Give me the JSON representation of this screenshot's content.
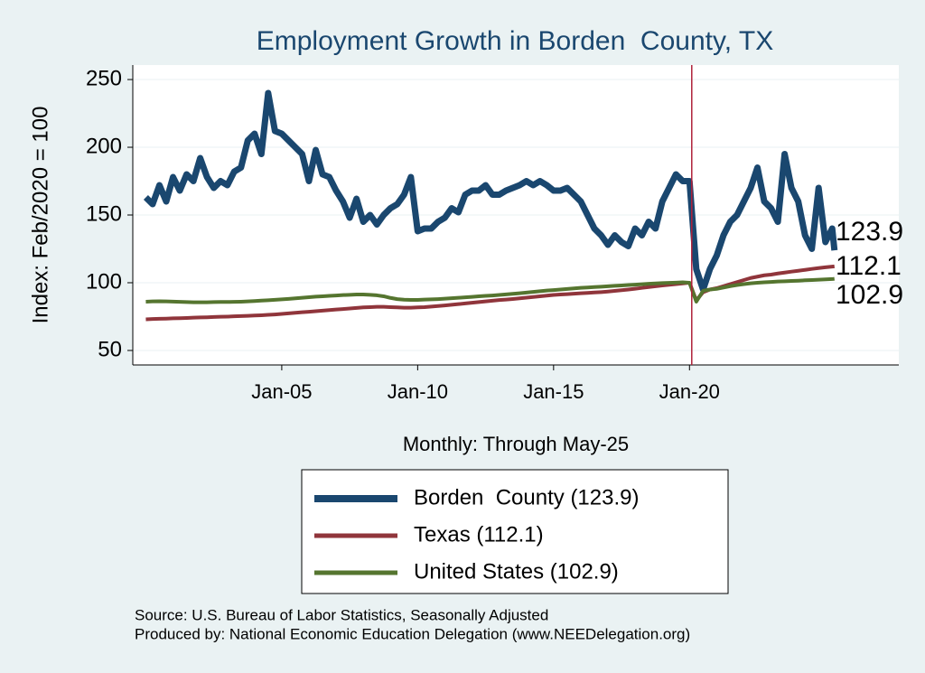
{
  "chart_data": {
    "type": "line",
    "title": "Employment Growth in Borden  County, TX",
    "xlabel": "Monthly: Through May-25",
    "ylabel": "Index: Feb/2020 = 100",
    "notes": [
      "Source: U.S. Bureau of Labor Statistics, Seasonally Adjusted",
      "Produced by: National Economic Education Delegation (www.NEEDelegation.org)"
    ],
    "xlim": [
      1999.52,
      2027.7
    ],
    "ylim": [
      39.3,
      260.7
    ],
    "xticks": [
      {
        "value": 2005,
        "label": "Jan-05"
      },
      {
        "value": 2010,
        "label": "Jan-10"
      },
      {
        "value": 2015,
        "label": "Jan-15"
      },
      {
        "value": 2020,
        "label": "Jan-20"
      }
    ],
    "yticks": [
      50,
      100,
      150,
      200,
      250
    ],
    "grid": true,
    "vline": 2020.083,
    "vline_color": "#b0213a",
    "x": [
      2000,
      2000.25,
      2000.5,
      2000.75,
      2001,
      2001.25,
      2001.5,
      2001.75,
      2002,
      2002.25,
      2002.5,
      2002.75,
      2003,
      2003.25,
      2003.5,
      2003.75,
      2004,
      2004.25,
      2004.5,
      2004.75,
      2005,
      2005.25,
      2005.5,
      2005.75,
      2006,
      2006.25,
      2006.5,
      2006.75,
      2007,
      2007.25,
      2007.5,
      2007.75,
      2008,
      2008.25,
      2008.5,
      2008.75,
      2009,
      2009.25,
      2009.5,
      2009.75,
      2010,
      2010.25,
      2010.5,
      2010.75,
      2011,
      2011.25,
      2011.5,
      2011.75,
      2012,
      2012.25,
      2012.5,
      2012.75,
      2013,
      2013.25,
      2013.5,
      2013.75,
      2014,
      2014.25,
      2014.5,
      2014.75,
      2015,
      2015.25,
      2015.5,
      2015.75,
      2016,
      2016.25,
      2016.5,
      2016.75,
      2017,
      2017.25,
      2017.5,
      2017.75,
      2018,
      2018.25,
      2018.5,
      2018.75,
      2019,
      2019.25,
      2019.5,
      2019.75,
      2020,
      2020.25,
      2020.5,
      2020.75,
      2021,
      2021.25,
      2021.5,
      2021.75,
      2022,
      2022.25,
      2022.5,
      2022.75,
      2023,
      2023.25,
      2023.5,
      2023.75,
      2024,
      2024.25,
      2024.5,
      2024.75,
      2025,
      2025.25,
      2025.333
    ],
    "series": [
      {
        "name": "Borden  County (123.9)",
        "color": "#1a476f",
        "width": 7,
        "values": [
          163,
          158,
          172,
          160,
          178,
          168,
          180,
          175,
          192,
          178,
          170,
          175,
          172,
          182,
          185,
          205,
          210,
          195,
          240,
          212,
          210,
          205,
          200,
          195,
          175,
          198,
          180,
          178,
          168,
          160,
          148,
          162,
          145,
          150,
          143,
          150,
          155,
          158,
          165,
          178,
          138,
          140,
          140,
          145,
          148,
          155,
          152,
          165,
          168,
          168,
          172,
          165,
          165,
          168,
          170,
          172,
          175,
          172,
          175,
          172,
          168,
          168,
          170,
          165,
          160,
          150,
          140,
          135,
          128,
          135,
          130,
          127,
          140,
          135,
          145,
          140,
          160,
          170,
          180,
          175,
          175,
          110,
          95,
          110,
          120,
          135,
          145,
          150,
          160,
          170,
          185,
          160,
          155,
          145,
          195,
          170,
          160,
          135,
          125,
          170,
          130,
          140,
          123.9
        ]
      },
      {
        "name": "Texas (112.1)",
        "color": "#90353b",
        "width": 4,
        "values": [
          73,
          73.2,
          73.4,
          73.5,
          73.7,
          73.8,
          74,
          74.2,
          74.4,
          74.5,
          74.7,
          74.9,
          75,
          75.2,
          75.4,
          75.6,
          75.8,
          76,
          76.3,
          76.6,
          77,
          77.4,
          77.8,
          78.2,
          78.6,
          79,
          79.4,
          79.8,
          80.2,
          80.6,
          81,
          81.4,
          81.8,
          82,
          82.2,
          82.2,
          82,
          81.8,
          81.6,
          81.6,
          81.8,
          82,
          82.4,
          82.8,
          83.2,
          83.7,
          84.2,
          84.7,
          85.2,
          85.7,
          86.2,
          86.7,
          87.2,
          87.6,
          88,
          88.5,
          89,
          89.5,
          90,
          90.5,
          91,
          91.3,
          91.6,
          91.9,
          92.2,
          92.5,
          92.8,
          93.1,
          93.5,
          94,
          94.5,
          95,
          95.6,
          96.2,
          96.8,
          97.4,
          98,
          98.5,
          99,
          99.5,
          100,
          87,
          93,
          95,
          96,
          97.5,
          99,
          100.5,
          102,
          103.5,
          104.5,
          105.5,
          106,
          106.8,
          107.5,
          108.2,
          108.8,
          109.5,
          110.2,
          110.8,
          111.4,
          111.9,
          112.1
        ]
      },
      {
        "name": "United States (102.9)",
        "color": "#55752f",
        "width": 4,
        "values": [
          86,
          86.2,
          86.3,
          86.2,
          86.1,
          85.9,
          85.7,
          85.6,
          85.6,
          85.6,
          85.7,
          85.8,
          85.8,
          85.9,
          86,
          86.2,
          86.5,
          86.8,
          87.1,
          87.4,
          87.7,
          88.1,
          88.5,
          88.9,
          89.3,
          89.7,
          90,
          90.3,
          90.6,
          90.9,
          91.1,
          91.3,
          91.3,
          91.1,
          90.7,
          90,
          88.8,
          87.9,
          87.5,
          87.3,
          87.3,
          87.6,
          87.7,
          87.9,
          88.2,
          88.6,
          88.9,
          89.2,
          89.6,
          90,
          90.3,
          90.6,
          91,
          91.4,
          91.8,
          92.2,
          92.7,
          93.2,
          93.7,
          94.2,
          94.6,
          95,
          95.4,
          95.8,
          96.2,
          96.5,
          96.8,
          97.1,
          97.4,
          97.7,
          98,
          98.3,
          98.6,
          98.9,
          99.2,
          99.5,
          99.7,
          99.9,
          100.1,
          100.3,
          100,
          86,
          94,
          95,
          95.5,
          96.5,
          97.5,
          98.3,
          99,
          99.6,
          100,
          100.3,
          100.6,
          100.9,
          101.1,
          101.3,
          101.5,
          101.8,
          102,
          102.2,
          102.5,
          102.7,
          102.9
        ]
      }
    ]
  }
}
